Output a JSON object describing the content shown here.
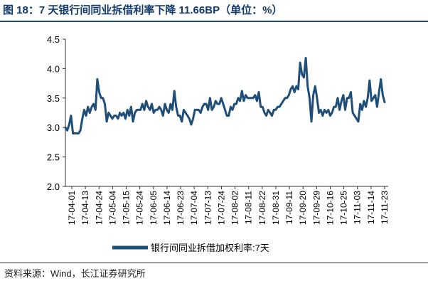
{
  "title": "图 18：7 天银行间同业拆借利率下降 11.66BP（单位：%）",
  "source": "资料来源：Wind，长江证券研究所",
  "colors": {
    "line": "#1f4e79",
    "title": "#123a6b",
    "axis": "#333333"
  },
  "chart_data": {
    "type": "line",
    "title": "图 18：7 天银行间同业拆借利率下降 11.66BP（单位：%）",
    "xlabel": "",
    "ylabel": "",
    "ylim": [
      2.0,
      4.5
    ],
    "yticks": [
      "2.0",
      "2.5",
      "3.0",
      "3.5",
      "4.0",
      "4.5"
    ],
    "grid": false,
    "legend_position": "bottom",
    "x_tick_labels": [
      "17-04-01",
      "17-04-13",
      "17-04-24",
      "17-05-04",
      "17-05-15",
      "17-05-24",
      "17-06-05",
      "17-06-14",
      "17-06-23",
      "17-07-04",
      "17-07-13",
      "17-07-24",
      "17-08-02",
      "17-08-11",
      "17-08-22",
      "17-08-31",
      "17-09-11",
      "17-09-20",
      "17-09-29",
      "17-10-16",
      "17-10-25",
      "17-11-03",
      "17-11-14",
      "17-11-23"
    ],
    "series": [
      {
        "name": "银行间同业拆借加权利率:7天",
        "values": [
          3.0,
          2.95,
          3.05,
          3.2,
          2.9,
          2.9,
          2.9,
          2.9,
          2.95,
          3.15,
          3.3,
          3.2,
          3.35,
          3.25,
          3.35,
          3.4,
          3.3,
          3.82,
          3.6,
          3.5,
          3.5,
          3.4,
          3.1,
          3.25,
          3.2,
          3.15,
          3.2,
          3.2,
          3.15,
          3.25,
          3.2,
          3.25,
          3.15,
          3.3,
          3.2,
          3.35,
          3.1,
          3.25,
          3.3,
          3.3,
          3.3,
          3.4,
          3.3,
          3.45,
          3.35,
          3.3,
          3.4,
          3.25,
          3.3,
          3.3,
          3.35,
          3.3,
          3.2,
          3.4,
          3.3,
          3.25,
          3.4,
          3.3,
          3.62,
          3.35,
          3.2,
          3.2,
          3.1,
          3.3,
          3.25,
          3.2,
          3.15,
          3.05,
          3.15,
          3.3,
          3.3,
          3.3,
          3.25,
          3.35,
          3.4,
          3.4,
          3.3,
          3.5,
          3.3,
          3.35,
          3.45,
          3.4,
          3.4,
          3.5,
          3.4,
          3.3,
          3.2,
          3.2,
          3.35,
          3.3,
          3.4,
          3.4,
          3.5,
          3.45,
          3.62,
          3.45,
          3.55,
          3.5,
          3.5,
          3.5,
          3.5,
          3.55,
          3.45,
          3.6,
          3.35,
          3.35,
          3.25,
          3.2,
          3.3,
          3.25,
          3.2,
          3.3,
          3.3,
          3.35,
          3.35,
          3.4,
          3.45,
          3.5,
          3.5,
          3.55,
          3.65,
          3.7,
          3.6,
          3.7,
          3.65,
          4.1,
          3.9,
          3.85,
          4.18,
          3.7,
          3.5,
          3.1,
          3.55,
          3.7,
          3.5,
          3.25,
          3.3,
          3.2,
          3.3,
          3.25,
          3.3,
          3.2,
          3.25,
          3.35,
          3.35,
          3.5,
          3.3,
          3.45,
          3.55,
          3.3,
          3.5,
          3.5,
          3.6,
          3.25,
          3.2,
          3.15,
          3.1,
          3.4,
          3.3,
          3.45,
          3.35,
          3.5,
          3.8,
          3.45,
          3.5,
          3.55,
          3.35,
          3.6,
          3.82,
          3.55,
          3.43
        ]
      }
    ]
  }
}
